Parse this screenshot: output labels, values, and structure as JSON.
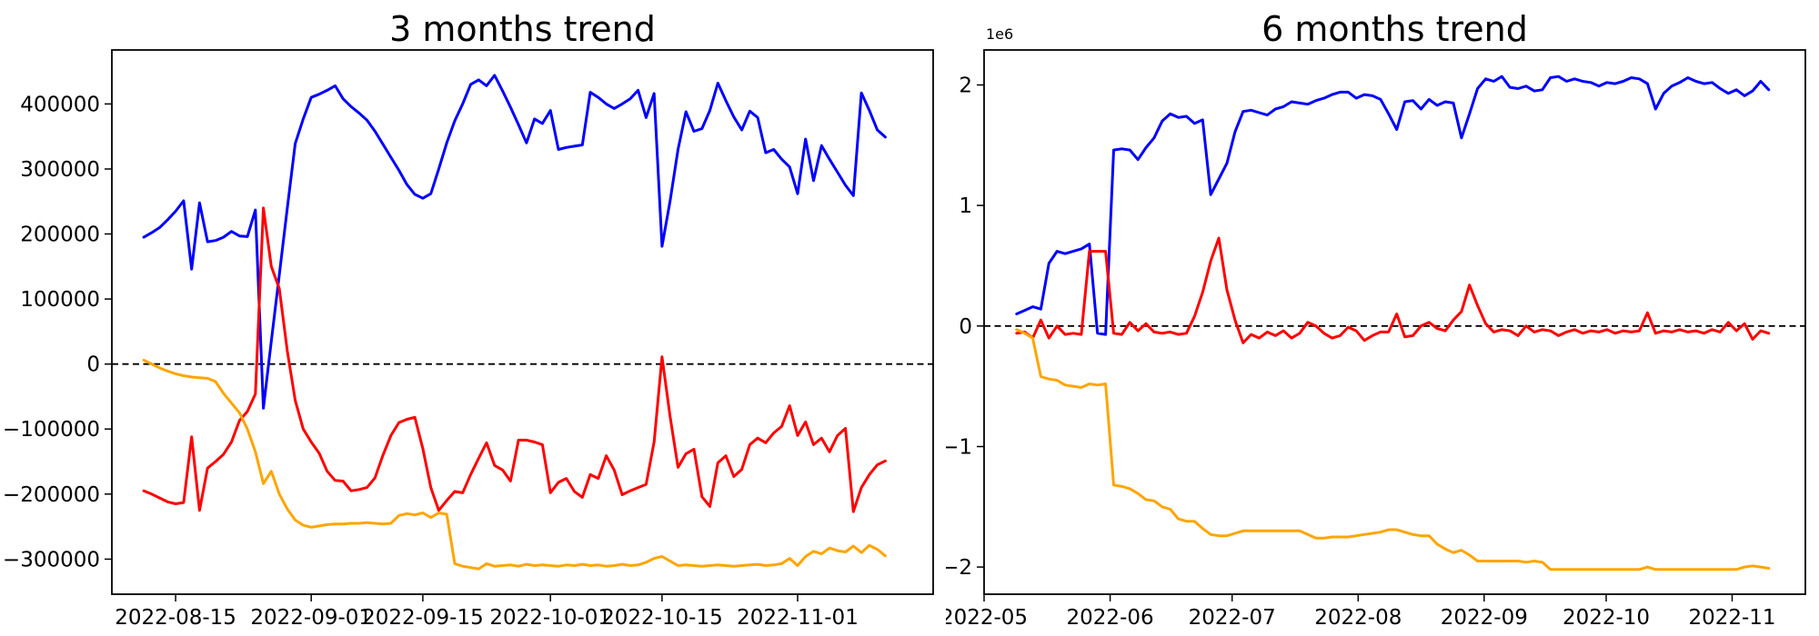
{
  "figure": {
    "background": "#ffffff",
    "text_color": "#000000"
  },
  "chart_data": [
    {
      "type": "line",
      "title": "3 months trend",
      "xlabel": "",
      "ylabel": "",
      "y_offset_label": "",
      "grid": false,
      "legend": "none",
      "zero_line": {
        "value": 0,
        "color": "#000000",
        "style": "dashed"
      },
      "x_domain": [
        "2022-08-07",
        "2022-11-18"
      ],
      "xticks": [
        {
          "label": "2022-08-15",
          "date": "2022-08-15"
        },
        {
          "label": "2022-09-01",
          "date": "2022-09-01"
        },
        {
          "label": "2022-09-15",
          "date": "2022-09-15"
        },
        {
          "label": "2022-10-01",
          "date": "2022-10-01"
        },
        {
          "label": "2022-10-15",
          "date": "2022-10-15"
        },
        {
          "label": "2022-11-01",
          "date": "2022-11-01"
        }
      ],
      "ylim": [
        -354000,
        483000
      ],
      "yticks": [
        {
          "label": "400000",
          "value": 400000
        },
        {
          "label": "300000",
          "value": 300000
        },
        {
          "label": "200000",
          "value": 200000
        },
        {
          "label": "100000",
          "value": 100000
        },
        {
          "label": "0",
          "value": 0
        },
        {
          "label": "−100000",
          "value": -100000
        },
        {
          "label": "−200000",
          "value": -200000
        },
        {
          "label": "−300000",
          "value": -300000
        }
      ],
      "series": [
        {
          "name": "blue",
          "color": "#0000ff",
          "start_date": "2022-08-11",
          "end_date": "2022-11-12",
          "values": [
            195000,
            202000,
            210000,
            222000,
            235000,
            251000,
            146000,
            248000,
            188000,
            190000,
            195000,
            204000,
            197000,
            196000,
            237000,
            -68000,
            35000,
            137000,
            240000,
            339000,
            377000,
            410000,
            415000,
            421000,
            428000,
            408000,
            396000,
            386000,
            375000,
            358000,
            338000,
            318000,
            298000,
            276000,
            261000,
            255000,
            262000,
            300000,
            340000,
            374000,
            400000,
            430000,
            437000,
            428000,
            444000,
            420000,
            395000,
            368000,
            340000,
            377000,
            370000,
            390000,
            330000,
            333000,
            335000,
            337000,
            418000,
            410000,
            400000,
            393000,
            400000,
            408000,
            421000,
            379000,
            416000,
            181000,
            250000,
            330000,
            388000,
            358000,
            362000,
            390000,
            432000,
            405000,
            380000,
            360000,
            389000,
            379000,
            325000,
            330000,
            315000,
            303000,
            262000,
            346000,
            282000,
            336000,
            315000,
            295000,
            275000,
            259000,
            417000,
            390000,
            360000,
            349000
          ]
        },
        {
          "name": "red",
          "color": "#ff0000",
          "start_date": "2022-08-11",
          "end_date": "2022-11-12",
          "values": [
            -195000,
            -200000,
            -206000,
            -212000,
            -215000,
            -213000,
            -112000,
            -225000,
            -160000,
            -150000,
            -139000,
            -120000,
            -87000,
            -73000,
            -46000,
            240000,
            150000,
            116000,
            20000,
            -56000,
            -100000,
            -120000,
            -137000,
            -165000,
            -179000,
            -180000,
            -195000,
            -193000,
            -190000,
            -175000,
            -140000,
            -110000,
            -90000,
            -85000,
            -82000,
            -130000,
            -190000,
            -225000,
            -210000,
            -196000,
            -198000,
            -170000,
            -145000,
            -121000,
            -156000,
            -163000,
            -180000,
            -117000,
            -117000,
            -120000,
            -124000,
            -198000,
            -182000,
            -176000,
            -196000,
            -205000,
            -170000,
            -176000,
            -141000,
            -163000,
            -201000,
            -195000,
            -190000,
            -185000,
            -120000,
            11000,
            -80000,
            -159000,
            -138000,
            -131000,
            -204000,
            -219000,
            -152000,
            -141000,
            -173000,
            -162000,
            -124000,
            -114000,
            -121000,
            -106000,
            -96000,
            -64000,
            -110000,
            -89000,
            -124000,
            -114000,
            -135000,
            -110000,
            -99000,
            -227000,
            -190000,
            -170000,
            -155000,
            -149000
          ]
        },
        {
          "name": "orange",
          "color": "#ffa500",
          "start_date": "2022-08-11",
          "end_date": "2022-11-12",
          "values": [
            6000,
            0,
            -6000,
            -11000,
            -15000,
            -18000,
            -20000,
            -21000,
            -22000,
            -27000,
            -45000,
            -60000,
            -75000,
            -100000,
            -135000,
            -184000,
            -165000,
            -200000,
            -223000,
            -240000,
            -248000,
            -251000,
            -249000,
            -247000,
            -246000,
            -246000,
            -245000,
            -245000,
            -244000,
            -245000,
            -246000,
            -245000,
            -233000,
            -230000,
            -232000,
            -229000,
            -236000,
            -229000,
            -231000,
            -307000,
            -311000,
            -313000,
            -315000,
            -307000,
            -311000,
            -310000,
            -309000,
            -311000,
            -308000,
            -310000,
            -309000,
            -310000,
            -311000,
            -309000,
            -310000,
            -308000,
            -310000,
            -309000,
            -311000,
            -310000,
            -308000,
            -310000,
            -309000,
            -305000,
            -299000,
            -296000,
            -303000,
            -310000,
            -309000,
            -310000,
            -311000,
            -310000,
            -309000,
            -310000,
            -311000,
            -310000,
            -309000,
            -308000,
            -310000,
            -309000,
            -307000,
            -299000,
            -310000,
            -296000,
            -288000,
            -292000,
            -283000,
            -287000,
            -289000,
            -280000,
            -290000,
            -279000,
            -285000,
            -295000
          ]
        }
      ]
    },
    {
      "type": "line",
      "title": "6 months trend",
      "xlabel": "",
      "ylabel": "",
      "y_offset_label": "1e6",
      "grid": false,
      "legend": "none",
      "zero_line": {
        "value": 0,
        "color": "#000000",
        "style": "dashed"
      },
      "x_domain": [
        "2022-05-01",
        "2022-11-19"
      ],
      "xticks": [
        {
          "label": "2022-05",
          "date": "2022-05-01"
        },
        {
          "label": "2022-06",
          "date": "2022-06-01"
        },
        {
          "label": "2022-07",
          "date": "2022-07-01"
        },
        {
          "label": "2022-08",
          "date": "2022-08-01"
        },
        {
          "label": "2022-09",
          "date": "2022-09-01"
        },
        {
          "label": "2022-10",
          "date": "2022-10-01"
        },
        {
          "label": "2022-11",
          "date": "2022-11-01"
        }
      ],
      "ylim": [
        -2225000,
        2290000
      ],
      "yticks": [
        {
          "label": "2",
          "value": 2000000
        },
        {
          "label": "1",
          "value": 1000000
        },
        {
          "label": "0",
          "value": 0
        },
        {
          "label": "−1",
          "value": -1000000
        },
        {
          "label": "−2",
          "value": -2000000
        }
      ],
      "series": [
        {
          "name": "blue",
          "color": "#0000ff",
          "start_date": "2022-05-09",
          "end_date": "2022-11-10",
          "values": [
            100000,
            130000,
            160000,
            140000,
            520000,
            620000,
            600000,
            620000,
            640000,
            680000,
            -60000,
            -70000,
            1460000,
            1470000,
            1460000,
            1380000,
            1480000,
            1560000,
            1700000,
            1760000,
            1730000,
            1740000,
            1680000,
            1710000,
            1090000,
            1220000,
            1350000,
            1610000,
            1780000,
            1790000,
            1770000,
            1750000,
            1800000,
            1820000,
            1860000,
            1850000,
            1840000,
            1870000,
            1890000,
            1920000,
            1940000,
            1940000,
            1890000,
            1920000,
            1910000,
            1880000,
            1760000,
            1630000,
            1860000,
            1870000,
            1800000,
            1880000,
            1830000,
            1860000,
            1850000,
            1560000,
            1760000,
            1970000,
            2050000,
            2030000,
            2070000,
            1980000,
            1970000,
            1990000,
            1950000,
            1960000,
            2060000,
            2070000,
            2030000,
            2050000,
            2030000,
            2020000,
            1990000,
            2020000,
            2010000,
            2030000,
            2060000,
            2050000,
            2010000,
            1800000,
            1930000,
            1990000,
            2020000,
            2060000,
            2030000,
            2010000,
            2020000,
            1970000,
            1930000,
            1960000,
            1910000,
            1950000,
            2030000,
            1960000
          ]
        },
        {
          "name": "red",
          "color": "#ff0000",
          "start_date": "2022-05-09",
          "end_date": "2022-11-10",
          "values": [
            -60000,
            -50000,
            -100000,
            50000,
            -100000,
            0,
            -70000,
            -60000,
            -70000,
            620000,
            620000,
            620000,
            -60000,
            -70000,
            30000,
            -40000,
            20000,
            -50000,
            -60000,
            -50000,
            -70000,
            -60000,
            80000,
            280000,
            540000,
            730000,
            300000,
            50000,
            -140000,
            -70000,
            -100000,
            -50000,
            -80000,
            -40000,
            -100000,
            -60000,
            30000,
            0,
            -60000,
            -100000,
            -80000,
            -10000,
            -40000,
            -120000,
            -80000,
            -50000,
            -50000,
            100000,
            -90000,
            -80000,
            0,
            30000,
            -20000,
            -40000,
            50000,
            120000,
            340000,
            170000,
            20000,
            -50000,
            -30000,
            -40000,
            -80000,
            0,
            -50000,
            -30000,
            -40000,
            -80000,
            -50000,
            -30000,
            -60000,
            -40000,
            -50000,
            -30000,
            -60000,
            -40000,
            -50000,
            -40000,
            110000,
            -60000,
            -40000,
            -50000,
            -30000,
            -50000,
            -40000,
            -60000,
            -30000,
            -50000,
            30000,
            -40000,
            20000,
            -110000,
            -40000,
            -60000
          ]
        },
        {
          "name": "orange",
          "color": "#ffa500",
          "start_date": "2022-05-09",
          "end_date": "2022-11-10",
          "values": [
            -30000,
            -60000,
            -100000,
            -420000,
            -440000,
            -450000,
            -490000,
            -500000,
            -510000,
            -480000,
            -490000,
            -480000,
            -1320000,
            -1330000,
            -1350000,
            -1390000,
            -1440000,
            -1450000,
            -1500000,
            -1520000,
            -1600000,
            -1620000,
            -1620000,
            -1680000,
            -1730000,
            -1740000,
            -1740000,
            -1720000,
            -1700000,
            -1700000,
            -1700000,
            -1700000,
            -1700000,
            -1700000,
            -1700000,
            -1700000,
            -1730000,
            -1760000,
            -1760000,
            -1750000,
            -1750000,
            -1750000,
            -1740000,
            -1730000,
            -1720000,
            -1710000,
            -1690000,
            -1690000,
            -1710000,
            -1730000,
            -1740000,
            -1740000,
            -1810000,
            -1850000,
            -1880000,
            -1860000,
            -1900000,
            -1950000,
            -1950000,
            -1950000,
            -1950000,
            -1950000,
            -1950000,
            -1960000,
            -1950000,
            -1960000,
            -2020000,
            -2020000,
            -2020000,
            -2020000,
            -2020000,
            -2020000,
            -2020000,
            -2020000,
            -2020000,
            -2020000,
            -2020000,
            -2020000,
            -2000000,
            -2020000,
            -2020000,
            -2020000,
            -2020000,
            -2020000,
            -2020000,
            -2020000,
            -2020000,
            -2020000,
            -2020000,
            -2020000,
            -2000000,
            -1990000,
            -2000000,
            -2010000
          ]
        }
      ]
    }
  ]
}
